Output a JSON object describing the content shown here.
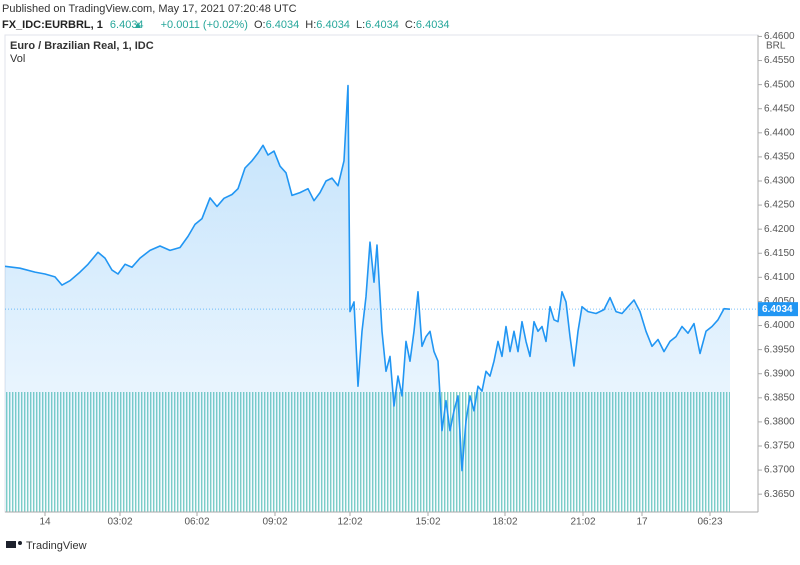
{
  "header": {
    "published": "Published on TradingView.com, May 17, 2021 07:20:48 UTC",
    "symbol": "FX_IDC:EURBRL, 1",
    "price": "6.4034",
    "change": "+0.0011 (+0.02%)",
    "open_label": "O:",
    "open": "6.4034",
    "high_label": "H:",
    "high": "6.4034",
    "low_label": "L:",
    "low": "6.4034",
    "close_label": "C:",
    "close": "6.4034"
  },
  "chart_data": {
    "type": "line",
    "title": "Euro / Brazilian Real, 1, IDC",
    "volume_label": "Vol",
    "currency": "BRL",
    "color": "#2196f3",
    "grid": false,
    "last_price": {
      "value": 6.4034,
      "label": "6.4034"
    },
    "x": [
      0,
      15,
      30,
      40,
      50,
      57,
      65,
      75,
      83,
      93,
      100,
      107,
      113,
      120,
      127,
      135,
      145,
      155,
      165,
      175,
      183,
      190,
      197,
      205,
      212,
      219,
      227,
      233,
      240,
      247,
      253,
      258,
      263,
      269,
      275,
      281,
      287,
      295,
      303,
      309,
      315,
      321,
      327,
      333,
      339,
      343,
      345,
      349,
      353,
      357,
      361,
      365,
      369,
      372,
      377,
      381,
      385,
      389,
      393,
      397,
      401,
      405,
      409,
      413,
      417,
      421,
      425,
      429,
      433,
      437,
      441,
      445,
      449,
      453,
      457,
      461,
      465,
      469,
      473,
      477,
      481,
      485,
      489,
      493,
      497,
      501,
      505,
      509,
      513,
      517,
      521,
      525,
      529,
      533,
      537,
      541,
      545,
      549,
      553,
      557,
      561,
      565,
      569,
      573,
      577,
      583,
      591,
      599,
      605,
      611,
      617,
      623,
      629,
      635,
      641,
      647,
      653,
      659,
      665,
      671,
      677,
      683,
      689,
      695,
      701,
      707,
      713,
      719,
      725
    ],
    "values": [
      6.4123,
      6.4119,
      6.4111,
      6.4107,
      6.4101,
      6.4084,
      6.4093,
      6.4111,
      6.4127,
      6.4152,
      6.414,
      6.4115,
      6.4107,
      6.4127,
      6.4121,
      6.414,
      6.4156,
      6.4165,
      6.4156,
      6.4162,
      6.4185,
      6.421,
      6.4222,
      6.4265,
      6.4247,
      6.4264,
      6.4272,
      6.4284,
      6.4327,
      6.4342,
      6.4358,
      6.4374,
      6.4354,
      6.4362,
      6.4331,
      6.4317,
      6.427,
      6.4276,
      6.4284,
      6.4259,
      6.4276,
      6.43,
      6.4306,
      6.429,
      6.4342,
      6.4498,
      6.4029,
      6.4049,
      6.3874,
      6.3988,
      6.406,
      6.4173,
      6.409,
      6.4167,
      6.3988,
      6.3905,
      6.3936,
      6.3833,
      6.3895,
      6.3854,
      6.3967,
      6.3926,
      6.3988,
      6.407,
      6.3957,
      6.3977,
      6.3988,
      6.3946,
      6.3926,
      6.3782,
      6.3844,
      6.3782,
      6.3823,
      6.3854,
      6.3699,
      6.3802,
      6.3854,
      6.3823,
      6.3874,
      6.3864,
      6.3905,
      6.3895,
      6.3926,
      6.3967,
      6.3936,
      6.3998,
      6.3946,
      6.3988,
      6.3946,
      6.4008,
      6.3967,
      6.3936,
      6.4008,
      6.3988,
      6.3998,
      6.3967,
      6.4039,
      6.4012,
      6.4008,
      6.407,
      6.4049,
      6.3977,
      6.3916,
      6.3988,
      6.4039,
      6.4029,
      6.4025,
      6.4033,
      6.4058,
      6.4029,
      6.4025,
      6.4039,
      6.4053,
      6.4029,
      6.3988,
      6.3957,
      6.3971,
      6.3946,
      6.3967,
      6.3977,
      6.3998,
      6.3984,
      6.4004,
      6.3942,
      6.3988,
      6.3998,
      6.4012,
      6.4035,
      6.4034
    ],
    "xlim": [
      0,
      753
    ],
    "xticks": [
      {
        "value": 40,
        "label": "14"
      },
      {
        "value": 115,
        "label": "03:02"
      },
      {
        "value": 192,
        "label": "06:02"
      },
      {
        "value": 270,
        "label": "09:02"
      },
      {
        "value": 345,
        "label": "12:02"
      },
      {
        "value": 423,
        "label": "15:02"
      },
      {
        "value": 500,
        "label": "18:02"
      },
      {
        "value": 578,
        "label": "21:02"
      },
      {
        "value": 637,
        "label": "17"
      },
      {
        "value": 705,
        "label": "06:23"
      }
    ],
    "ylim": [
      6.3613,
      6.4603
    ],
    "yticks": [
      {
        "value": 6.365,
        "label": "6.3650"
      },
      {
        "value": 6.37,
        "label": "6.3700"
      },
      {
        "value": 6.375,
        "label": "6.3750"
      },
      {
        "value": 6.38,
        "label": "6.3800"
      },
      {
        "value": 6.385,
        "label": "6.3850"
      },
      {
        "value": 6.39,
        "label": "6.3900"
      },
      {
        "value": 6.395,
        "label": "6.3950"
      },
      {
        "value": 6.4,
        "label": "6.4000"
      },
      {
        "value": 6.405,
        "label": "6.4050"
      },
      {
        "value": 6.41,
        "label": "6.4100"
      },
      {
        "value": 6.415,
        "label": "6.4150"
      },
      {
        "value": 6.42,
        "label": "6.4200"
      },
      {
        "value": 6.425,
        "label": "6.4250"
      },
      {
        "value": 6.43,
        "label": "6.4300"
      },
      {
        "value": 6.435,
        "label": "6.4350"
      },
      {
        "value": 6.44,
        "label": "6.4400"
      },
      {
        "value": 6.445,
        "label": "6.4450"
      },
      {
        "value": 6.45,
        "label": "6.4500"
      },
      {
        "value": 6.455,
        "label": "6.4550"
      },
      {
        "value": 6.46,
        "label": "6.4600"
      }
    ]
  },
  "footer": {
    "brand": "TradingView"
  }
}
